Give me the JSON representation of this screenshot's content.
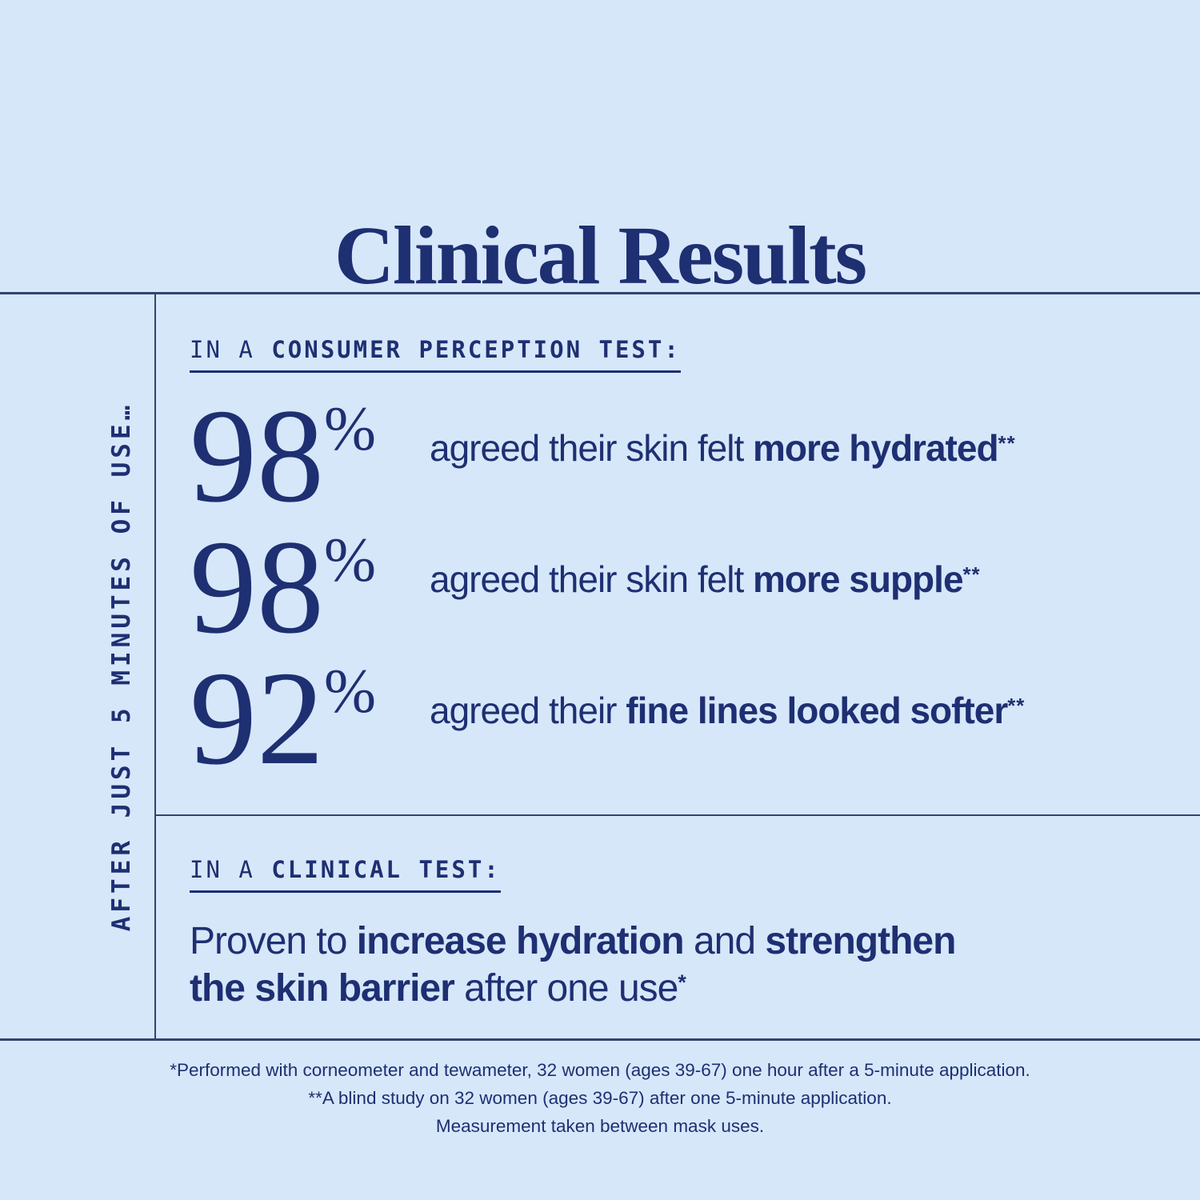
{
  "title": "Clinical Results",
  "side_label": "AFTER JUST 5 MINUTES OF USE…",
  "colors": {
    "background": "#d6e7fa",
    "navy": "#1e2f72",
    "rule": "#32466b"
  },
  "consumer_section": {
    "heading_prefix": "IN A ",
    "heading_emphasis": "CONSUMER PERCEPTION TEST:",
    "stats": [
      {
        "value": "98",
        "percent": "%",
        "text_before": "agreed their skin felt ",
        "text_bold": "more hydrated",
        "footnote_mark": "**"
      },
      {
        "value": "98",
        "percent": "%",
        "text_before": "agreed their skin felt ",
        "text_bold": "more supple",
        "footnote_mark": "**"
      },
      {
        "value": "92",
        "percent": "%",
        "text_before": "agreed their ",
        "text_bold": "fine lines looked softer",
        "footnote_mark": "**"
      }
    ]
  },
  "clinical_section": {
    "heading_prefix": "IN A ",
    "heading_emphasis": "CLINICAL TEST:",
    "statement_line1": {
      "seg0": "Proven to ",
      "seg1": "increase hydration",
      "seg2": " and ",
      "seg3": "strengthen"
    },
    "statement_line2": {
      "seg0": "the skin barrier",
      "seg1": " after one use"
    },
    "footnote_mark": "*"
  },
  "footnotes": [
    "*Performed with corneometer and tewameter, 32 women (ages 39-67) one hour after a 5-minute application.",
    "**A blind study on 32 women (ages 39-67) after one 5-minute application.",
    "Measurement taken between mask uses."
  ]
}
